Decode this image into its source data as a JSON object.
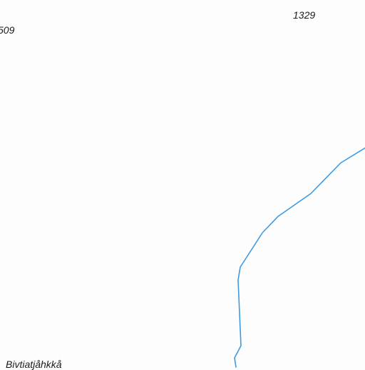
{
  "map": {
    "elevation_labels": {
      "left": "509",
      "right": "1329"
    },
    "place_label": "Bivtiatjåhkkå",
    "colors": {
      "background": "#fdfdfd",
      "stream": "#3c9be0",
      "label_text": "#1a1a1a"
    },
    "features": {
      "stream": "blue-stream-line"
    }
  }
}
